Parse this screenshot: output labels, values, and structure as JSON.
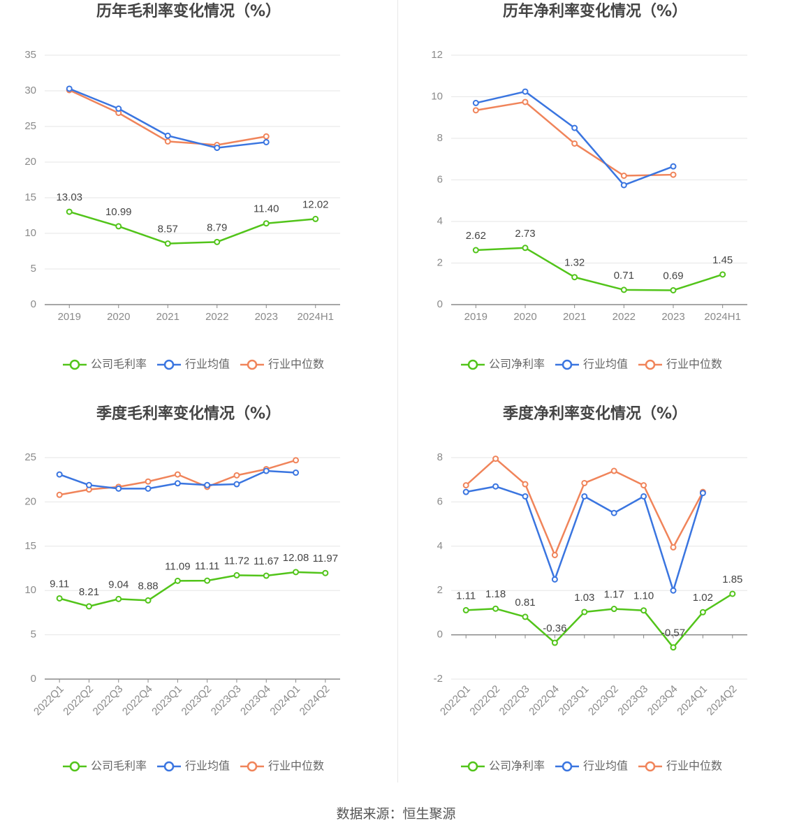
{
  "colors": {
    "company": "#52c41a",
    "avg": "#3a75e0",
    "median": "#f0845a",
    "grid": "#e6e6e6",
    "axis": "#888888",
    "text": "#8a8a8a"
  },
  "source": "数据来源：恒生聚源",
  "chart_data": [
    {
      "id": "annual-gross",
      "type": "line",
      "title": "历年毛利率变化情况（%）",
      "categories": [
        "2019",
        "2020",
        "2021",
        "2022",
        "2023",
        "2024H1"
      ],
      "ylim": [
        0,
        35
      ],
      "yticks": [
        0,
        5,
        10,
        15,
        20,
        25,
        30,
        35
      ],
      "grid": true,
      "legend": "bottom",
      "series": [
        {
          "name": "公司毛利率",
          "key": "company",
          "labels": true,
          "values": [
            13.03,
            10.99,
            8.57,
            8.79,
            11.4,
            12.02
          ]
        },
        {
          "name": "行业均值",
          "key": "avg",
          "labels": false,
          "values": [
            30.3,
            27.5,
            23.7,
            22.0,
            22.8,
            null
          ]
        },
        {
          "name": "行业中位数",
          "key": "median",
          "labels": false,
          "values": [
            30.1,
            26.9,
            22.9,
            22.4,
            23.6,
            null
          ]
        }
      ]
    },
    {
      "id": "annual-net",
      "type": "line",
      "title": "历年净利率变化情况（%）",
      "categories": [
        "2019",
        "2020",
        "2021",
        "2022",
        "2023",
        "2024H1"
      ],
      "ylim": [
        0,
        12
      ],
      "yticks": [
        0,
        2,
        4,
        6,
        8,
        10,
        12
      ],
      "grid": true,
      "legend": "bottom",
      "series": [
        {
          "name": "公司净利率",
          "key": "company",
          "labels": true,
          "values": [
            2.62,
            2.73,
            1.32,
            0.71,
            0.69,
            1.45
          ]
        },
        {
          "name": "行业均值",
          "key": "avg",
          "labels": false,
          "values": [
            9.7,
            10.25,
            8.5,
            5.75,
            6.65,
            null
          ]
        },
        {
          "name": "行业中位数",
          "key": "median",
          "labels": false,
          "values": [
            9.35,
            9.75,
            7.75,
            6.2,
            6.25,
            null
          ]
        }
      ]
    },
    {
      "id": "quarterly-gross",
      "type": "line",
      "title": "季度毛利率变化情况（%）",
      "categories": [
        "2022Q1",
        "2022Q2",
        "2022Q3",
        "2022Q4",
        "2023Q1",
        "2023Q2",
        "2023Q3",
        "2023Q4",
        "2024Q1",
        "2024Q2"
      ],
      "ylim": [
        0,
        25
      ],
      "yticks": [
        0,
        5,
        10,
        15,
        20,
        25
      ],
      "grid": true,
      "legend": "bottom",
      "series": [
        {
          "name": "公司毛利率",
          "key": "company",
          "labels": true,
          "values": [
            9.11,
            8.21,
            9.04,
            8.88,
            11.09,
            11.11,
            11.72,
            11.67,
            12.08,
            11.97
          ]
        },
        {
          "name": "行业均值",
          "key": "avg",
          "labels": false,
          "values": [
            23.1,
            21.9,
            21.5,
            21.5,
            22.1,
            21.9,
            22.0,
            23.5,
            23.3,
            null
          ]
        },
        {
          "name": "行业中位数",
          "key": "median",
          "labels": false,
          "values": [
            20.8,
            21.4,
            21.7,
            22.3,
            23.1,
            21.7,
            23.0,
            23.7,
            24.7,
            null
          ]
        }
      ]
    },
    {
      "id": "quarterly-net",
      "type": "line",
      "title": "季度净利率变化情况（%）",
      "categories": [
        "2022Q1",
        "2022Q2",
        "2022Q3",
        "2022Q4",
        "2023Q1",
        "2023Q2",
        "2023Q3",
        "2023Q4",
        "2024Q1",
        "2024Q2"
      ],
      "ylim": [
        -2,
        8
      ],
      "yticks": [
        -2,
        0,
        2,
        4,
        6,
        8
      ],
      "grid": true,
      "legend": "bottom",
      "series": [
        {
          "name": "公司净利率",
          "key": "company",
          "labels": true,
          "values": [
            1.11,
            1.18,
            0.81,
            -0.36,
            1.03,
            1.17,
            1.1,
            -0.57,
            1.02,
            1.85
          ]
        },
        {
          "name": "行业均值",
          "key": "avg",
          "labels": false,
          "values": [
            6.45,
            6.7,
            6.25,
            2.5,
            6.25,
            5.5,
            6.25,
            2.0,
            6.4,
            null
          ]
        },
        {
          "name": "行业中位数",
          "key": "median",
          "labels": false,
          "values": [
            6.75,
            7.95,
            6.8,
            3.6,
            6.85,
            7.4,
            6.75,
            3.95,
            6.45,
            null
          ]
        }
      ]
    }
  ]
}
